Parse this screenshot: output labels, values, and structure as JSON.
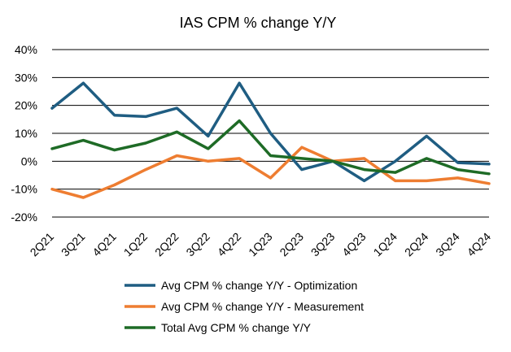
{
  "chart_data": {
    "type": "line",
    "title": "IAS CPM % change Y/Y",
    "xlabel": "",
    "ylabel": "",
    "categories": [
      "2Q21",
      "3Q21",
      "4Q21",
      "1Q22",
      "2Q22",
      "3Q22",
      "4Q22",
      "1Q23",
      "2Q23",
      "3Q23",
      "4Q23",
      "1Q24",
      "2Q24",
      "3Q24",
      "4Q24"
    ],
    "ylim": [
      -20,
      40
    ],
    "yticks": [
      -20,
      -10,
      0,
      10,
      20,
      30,
      40
    ],
    "ytick_labels": [
      "-20%",
      "-10%",
      "0%",
      "10%",
      "20%",
      "30%",
      "40%"
    ],
    "grid": true,
    "legend_position": "bottom",
    "series": [
      {
        "name": "Avg CPM % change Y/Y - Optimization",
        "color": "#1f5d82",
        "values": [
          19,
          28,
          16.5,
          16,
          19,
          9,
          28,
          10,
          -3,
          0,
          -7,
          0,
          9,
          -0.5,
          -1
        ]
      },
      {
        "name": "Avg CPM % change Y/Y - Measurement",
        "color": "#ee7d31",
        "values": [
          -10,
          -13,
          -8.5,
          -3,
          2,
          0,
          1,
          -6,
          5,
          0,
          1,
          -7,
          -7,
          -6,
          -8
        ]
      },
      {
        "name": "Total Avg CPM % change Y/Y",
        "color": "#1e6b26",
        "values": [
          4.5,
          7.5,
          4,
          6.5,
          10.5,
          4.5,
          14.5,
          2,
          1,
          0,
          -3,
          -4,
          1,
          -3,
          -4.5
        ]
      }
    ]
  }
}
